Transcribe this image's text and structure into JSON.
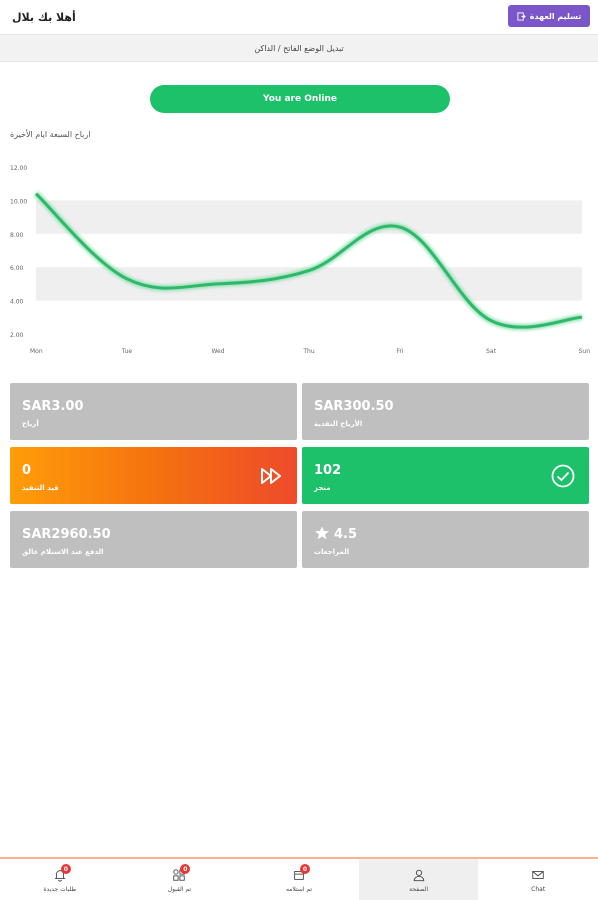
{
  "header": {
    "greeting": "أهلا بك بلال",
    "handover_label": "تسليم العهدة"
  },
  "subbar": {
    "text": "تبديل الوضع الفاتح / الداكن"
  },
  "status": {
    "online_label": "You are Online",
    "color": "#1cc16a"
  },
  "chart_title": "ارباح السبعة ايام الأخيرة",
  "chart_data": {
    "type": "line",
    "categories": [
      "Mon",
      "Tue",
      "Wed",
      "Thu",
      "Fri",
      "Sat",
      "Sun"
    ],
    "values": [
      10.4,
      5.3,
      5.0,
      5.8,
      8.4,
      2.8,
      3.0
    ],
    "yticks": [
      "2.00",
      "4.00",
      "6.00",
      "8.00",
      "10.00",
      "12.00"
    ],
    "ylim": [
      2,
      12
    ],
    "line_color": "#2fb86a",
    "band_color": "#efefef",
    "grid": "alternating bands"
  },
  "cards": [
    {
      "value": "SAR3.00",
      "label": "أرباح",
      "style": "gray"
    },
    {
      "value": "SAR300.50",
      "label": "الأرباح النقدية",
      "style": "gray"
    },
    {
      "value": "0",
      "label": "قيد التنفيذ",
      "style": "orange",
      "icon": "fast-forward-icon"
    },
    {
      "value": "102",
      "label": "منجز",
      "style": "green",
      "icon": "check-circle-icon"
    },
    {
      "value": "SAR2960.50",
      "label": "الدفع عند الاستلام عالق",
      "style": "gray"
    },
    {
      "value": "4.5",
      "label": "المراجعات",
      "style": "gray",
      "icon": "star-icon"
    }
  ],
  "bottom_nav": [
    {
      "label": "طلبات جديدة",
      "badge": "0",
      "icon": "bell-icon"
    },
    {
      "label": "تم القبول",
      "badge": "0",
      "icon": "grid-icon"
    },
    {
      "label": "تم استلامه",
      "badge": "0",
      "icon": "package-icon"
    },
    {
      "label": "الصفحة",
      "badge": "",
      "icon": "user-icon",
      "active": true
    },
    {
      "label": "Chat",
      "badge": "",
      "icon": "mail-icon"
    }
  ]
}
